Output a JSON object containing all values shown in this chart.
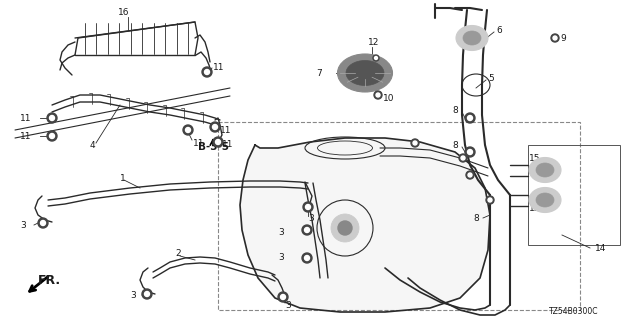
{
  "bg_color": "#ffffff",
  "diagram_code": "TZ54B0300C",
  "line_color": "#2a2a2a",
  "font_size": 6.5,
  "bold_font_size": 7.5,
  "fig_w": 6.4,
  "fig_h": 3.2,
  "dpi": 100
}
